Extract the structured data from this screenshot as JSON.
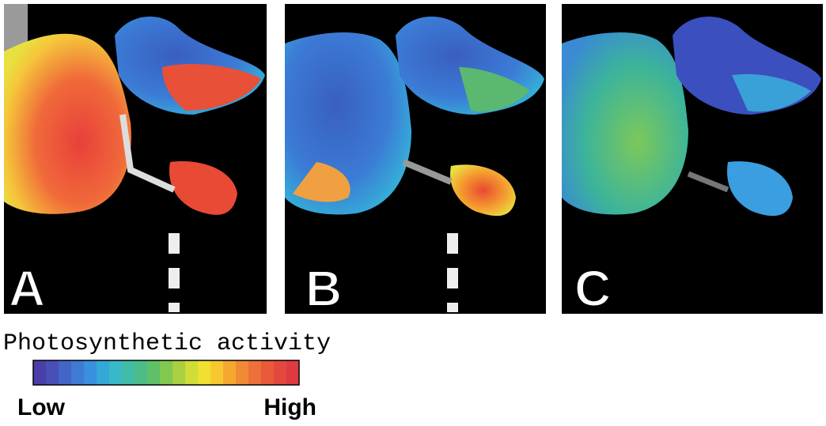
{
  "panels": [
    {
      "label": "A"
    },
    {
      "label": "B"
    },
    {
      "label": "C"
    }
  ],
  "legend": {
    "title": "Photosynthetic activity",
    "low": "Low",
    "high": "High"
  }
}
